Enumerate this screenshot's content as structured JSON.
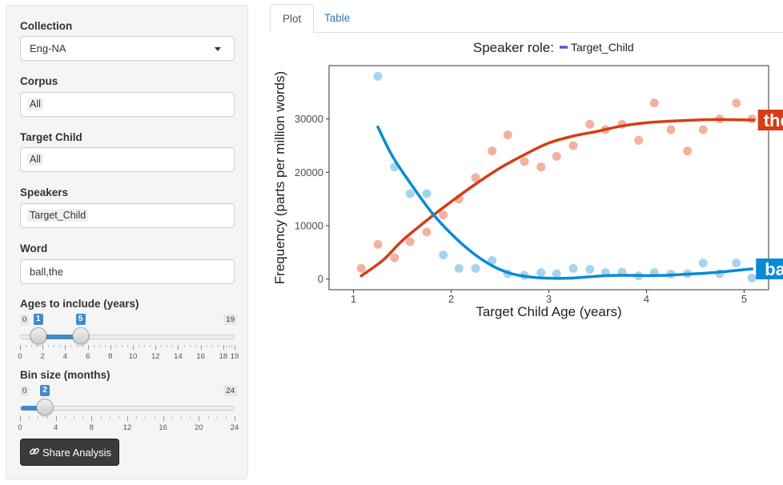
{
  "sidebar": {
    "collection_label": "Collection",
    "collection_value": "Eng-NA",
    "corpus_label": "Corpus",
    "corpus_value": "All",
    "target_child_label": "Target Child",
    "target_child_value": "All",
    "speakers_label": "Speakers",
    "speakers_value": "Target_Child",
    "word_label": "Word",
    "word_value": "ball,the",
    "ages_label": "Ages to include (years)",
    "ages_min": "0",
    "ages_max": "19",
    "ages_from": "1",
    "ages_to": "5",
    "ages_ticks": [
      "0",
      "2",
      "4",
      "6",
      "8",
      "10",
      "12",
      "14",
      "16",
      "18",
      "19"
    ],
    "bin_label": "Bin size (months)",
    "bin_min": "0",
    "bin_max": "24",
    "bin_value": "2",
    "bin_ticks": [
      "0",
      "4",
      "8",
      "12",
      "16",
      "20",
      "24"
    ],
    "share_label": "Share Analysis",
    "share_icon": "link-icon"
  },
  "tabs": {
    "plot": "Plot",
    "table": "Table"
  },
  "chart_data": {
    "type": "scatter",
    "legend_title": "Speaker role:",
    "legend_entry": "Target_Child",
    "legend_color": "#5555dd",
    "xlabel": "Target Child Age (years)",
    "ylabel": "Frequency (parts per million words)",
    "xlim": [
      0.75,
      5.25
    ],
    "ylim": [
      -2000,
      40000
    ],
    "xticks": [
      "1",
      "2",
      "3",
      "4",
      "5"
    ],
    "yticks": [
      "0",
      "10000",
      "20000",
      "30000"
    ],
    "grid": false,
    "series": [
      {
        "name": "the",
        "color": "#d53e14",
        "point_color": "#f0a58e",
        "points": [
          [
            1.08,
            2000
          ],
          [
            1.25,
            6500
          ],
          [
            1.42,
            4000
          ],
          [
            1.58,
            7000
          ],
          [
            1.75,
            8800
          ],
          [
            1.92,
            12000
          ],
          [
            2.08,
            15000
          ],
          [
            2.25,
            19000
          ],
          [
            2.42,
            24000
          ],
          [
            2.58,
            27000
          ],
          [
            2.75,
            22000
          ],
          [
            2.92,
            21000
          ],
          [
            3.08,
            23000
          ],
          [
            3.25,
            25000
          ],
          [
            3.42,
            29000
          ],
          [
            3.58,
            28000
          ],
          [
            3.75,
            29000
          ],
          [
            3.92,
            26000
          ],
          [
            4.08,
            33000
          ],
          [
            4.25,
            28000
          ],
          [
            4.42,
            24000
          ],
          [
            4.58,
            28000
          ],
          [
            4.75,
            30000
          ],
          [
            4.92,
            33000
          ],
          [
            5.08,
            30000
          ]
        ],
        "trend": [
          [
            1.08,
            600
          ],
          [
            1.3,
            3500
          ],
          [
            1.5,
            7200
          ],
          [
            1.75,
            11000
          ],
          [
            2.0,
            14500
          ],
          [
            2.25,
            17800
          ],
          [
            2.5,
            20800
          ],
          [
            2.75,
            23300
          ],
          [
            3.0,
            25500
          ],
          [
            3.25,
            26800
          ],
          [
            3.5,
            27700
          ],
          [
            3.75,
            28700
          ],
          [
            4.0,
            29300
          ],
          [
            4.25,
            29600
          ],
          [
            4.5,
            29800
          ],
          [
            4.75,
            29900
          ],
          [
            5.1,
            29800
          ]
        ]
      },
      {
        "name": "ball",
        "color": "#0a8ad6",
        "point_color": "#96cdec",
        "points": [
          [
            1.25,
            38000
          ],
          [
            1.42,
            21000
          ],
          [
            1.58,
            16000
          ],
          [
            1.75,
            16000
          ],
          [
            1.92,
            4500
          ],
          [
            2.08,
            2000
          ],
          [
            2.25,
            2000
          ],
          [
            2.42,
            3500
          ],
          [
            2.58,
            1000
          ],
          [
            2.75,
            700
          ],
          [
            2.92,
            1200
          ],
          [
            3.08,
            1000
          ],
          [
            3.25,
            2000
          ],
          [
            3.42,
            1800
          ],
          [
            3.58,
            1200
          ],
          [
            3.75,
            1300
          ],
          [
            3.92,
            600
          ],
          [
            4.08,
            1200
          ],
          [
            4.25,
            900
          ],
          [
            4.42,
            1000
          ],
          [
            4.58,
            3000
          ],
          [
            4.75,
            1000
          ],
          [
            4.92,
            3000
          ],
          [
            5.08,
            200
          ]
        ],
        "trend": [
          [
            1.25,
            28500
          ],
          [
            1.4,
            23000
          ],
          [
            1.6,
            17500
          ],
          [
            1.8,
            12500
          ],
          [
            2.0,
            8500
          ],
          [
            2.2,
            5200
          ],
          [
            2.4,
            2700
          ],
          [
            2.6,
            1100
          ],
          [
            2.8,
            400
          ],
          [
            3.0,
            150
          ],
          [
            3.2,
            150
          ],
          [
            3.4,
            400
          ],
          [
            3.6,
            650
          ],
          [
            3.8,
            700
          ],
          [
            4.0,
            650
          ],
          [
            4.2,
            700
          ],
          [
            4.4,
            900
          ],
          [
            4.6,
            1100
          ],
          [
            4.8,
            1400
          ],
          [
            5.08,
            1900
          ]
        ]
      }
    ]
  }
}
